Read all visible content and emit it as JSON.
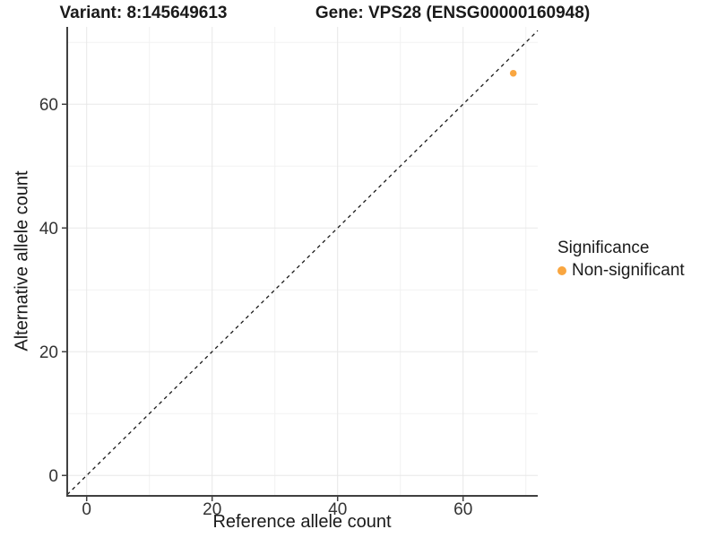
{
  "chart_data": {
    "type": "scatter",
    "title_left": "Variant: 8:145649613",
    "title_right": "Gene: VPS28 (ENSG00000160948)",
    "xlabel": "Reference allele count",
    "ylabel": "Alternative allele count",
    "xlim": [
      -3.1,
      71.9
    ],
    "ylim": [
      -3.3,
      72.5
    ],
    "x_ticks": [
      0,
      20,
      40,
      60
    ],
    "y_ticks": [
      0,
      20,
      40,
      60
    ],
    "x_minor_ticks": [
      10,
      30,
      50,
      70
    ],
    "y_minor_ticks": [
      10,
      30,
      50,
      70
    ],
    "grid": true,
    "legend_position": "right",
    "reference_line": {
      "type": "abline",
      "slope": 1,
      "intercept": 0,
      "linestyle": "dashed",
      "color": "#1a1a1a"
    },
    "series": [
      {
        "name": "Non-significant",
        "color": "#F9A640",
        "points": [
          {
            "x": 68,
            "y": 65
          }
        ]
      }
    ],
    "legend": {
      "title": "Significance",
      "items": [
        {
          "label": "Non-significant",
          "color": "#F9A640",
          "marker": "circle"
        }
      ]
    },
    "colors": {
      "grid_major": "#E8E8E8",
      "grid_minor": "#F2F2F2",
      "axis": "#404040",
      "tick_text": "#333333",
      "background": "#FFFFFF"
    }
  }
}
